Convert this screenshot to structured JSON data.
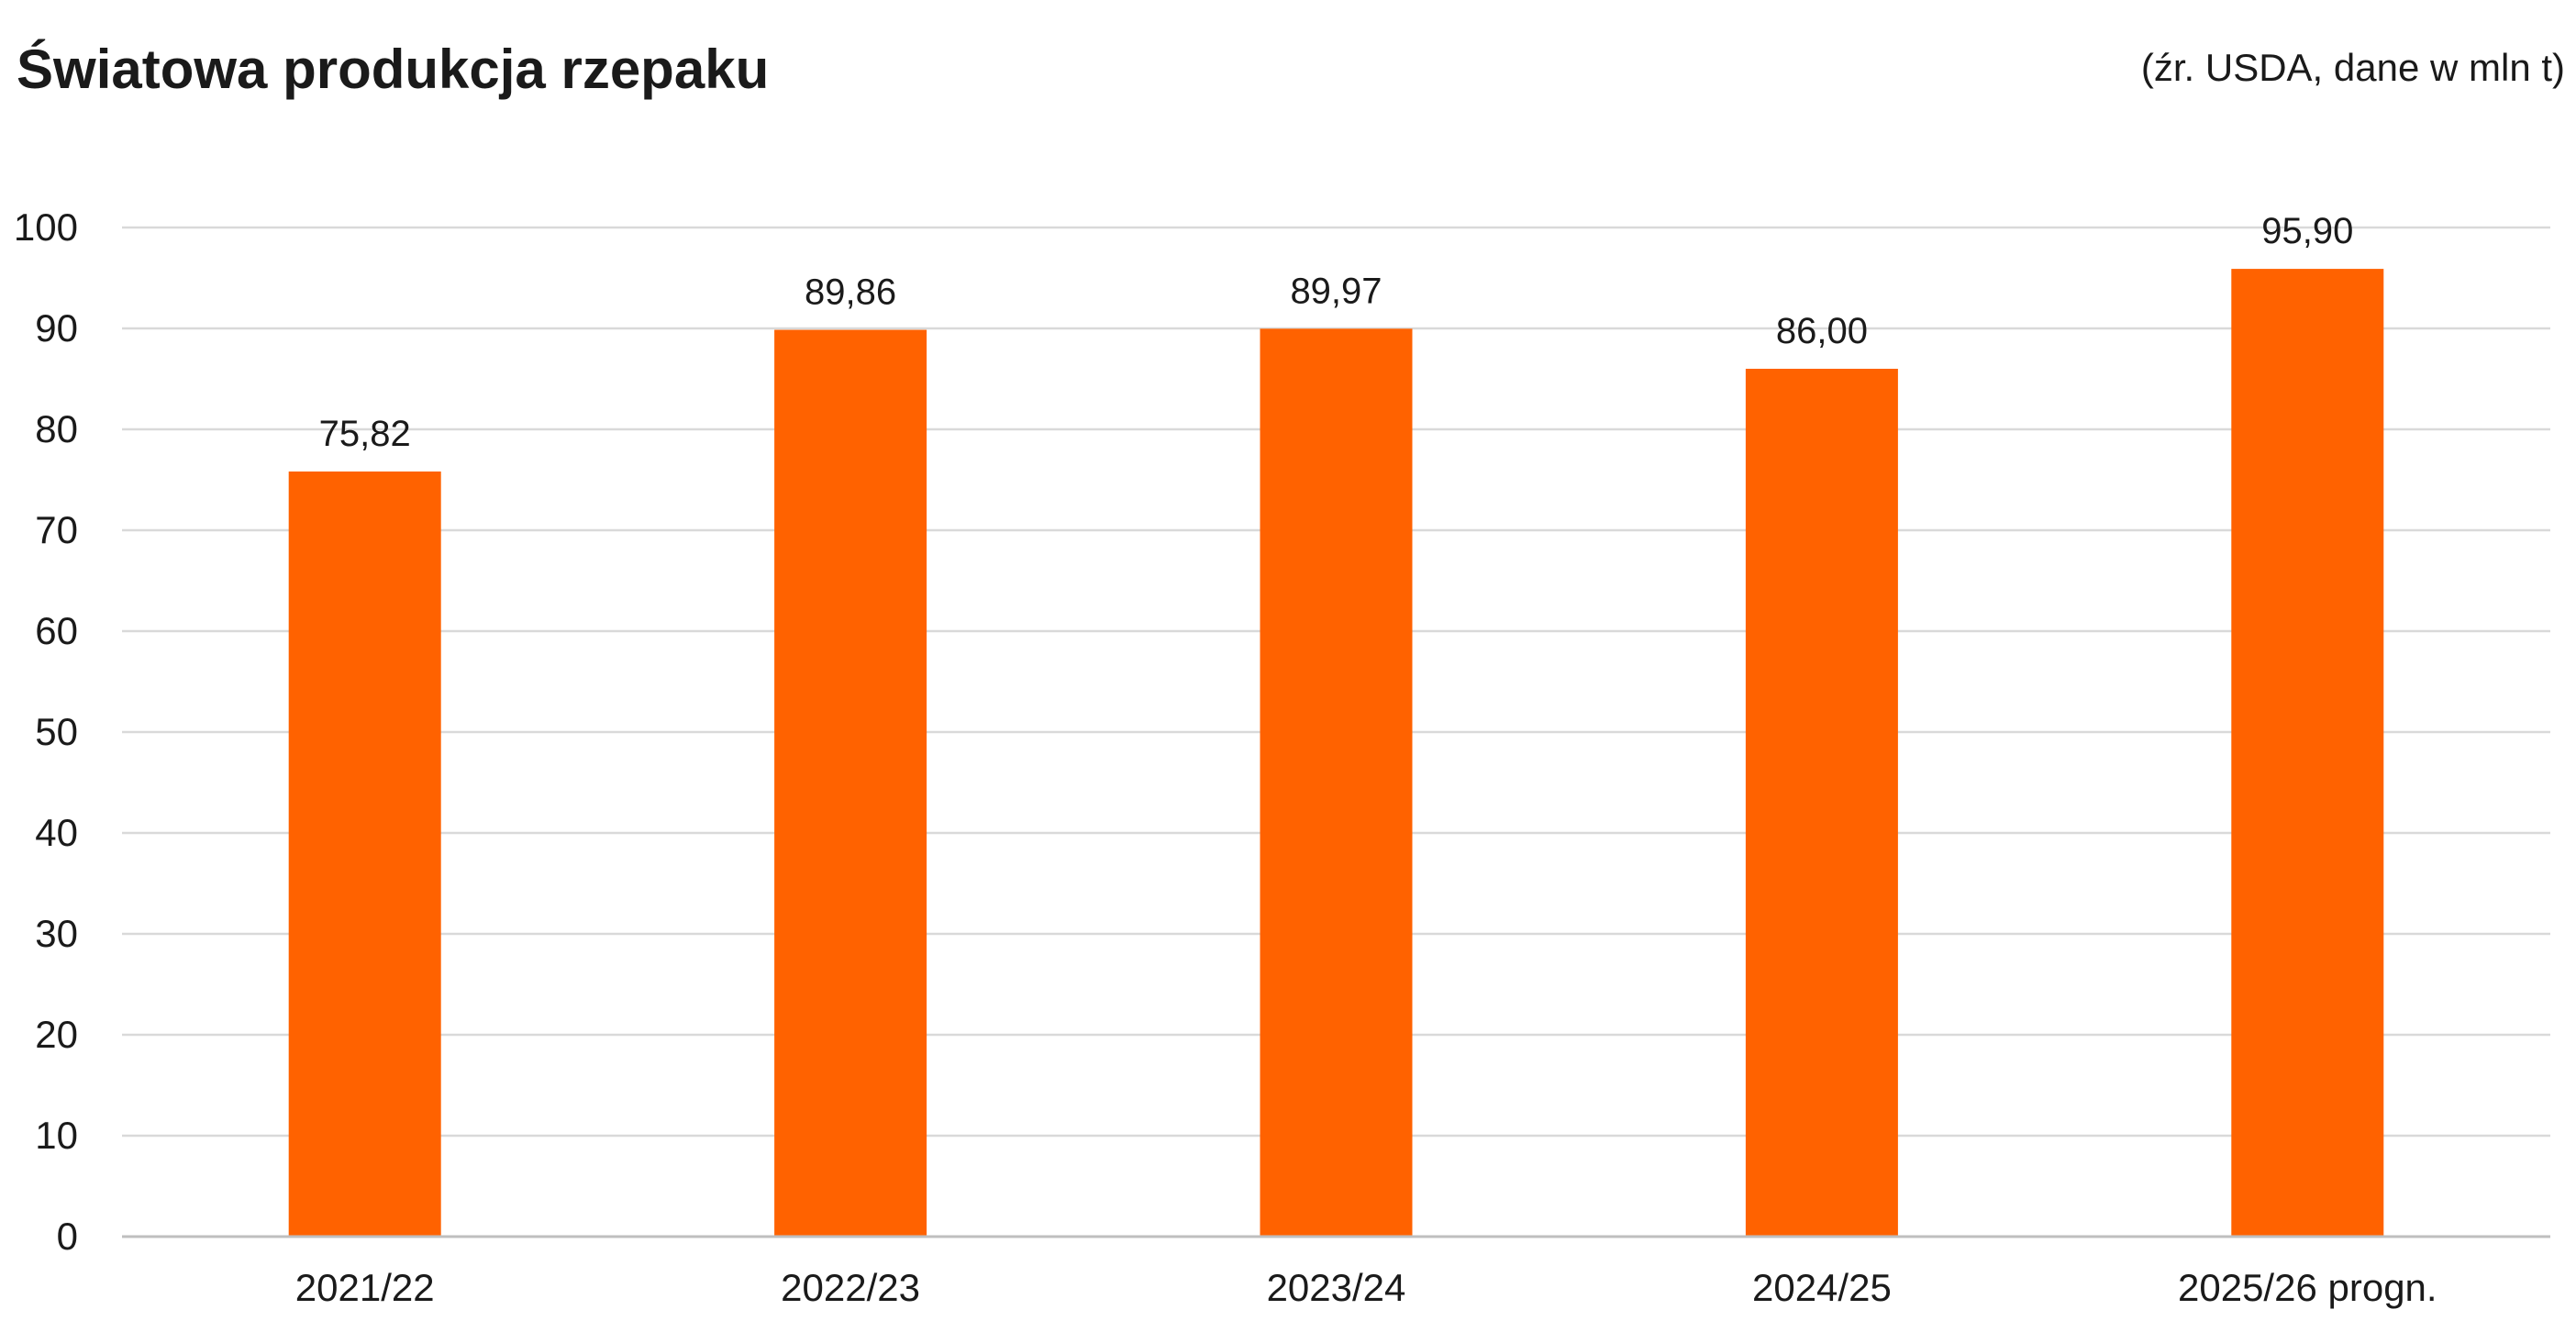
{
  "chart_data": {
    "type": "bar",
    "title": "Światowa produkcja rzepaku",
    "subtitle": "(źr. USDA, dane w mln t)",
    "categories": [
      "2021/22",
      "2022/23",
      "2023/24",
      "2024/25",
      "2025/26 progn."
    ],
    "values": [
      75.82,
      89.86,
      89.97,
      86.0,
      95.9
    ],
    "data_labels": [
      "75,82",
      "89,86",
      "89,97",
      "86,00",
      "95,90"
    ],
    "yticks": [
      "0",
      "10",
      "20",
      "30",
      "40",
      "50",
      "60",
      "70",
      "80",
      "90",
      "100"
    ],
    "ylim": [
      0,
      100
    ],
    "grid": true,
    "legend": "none",
    "bar_color": "#FF6200"
  }
}
